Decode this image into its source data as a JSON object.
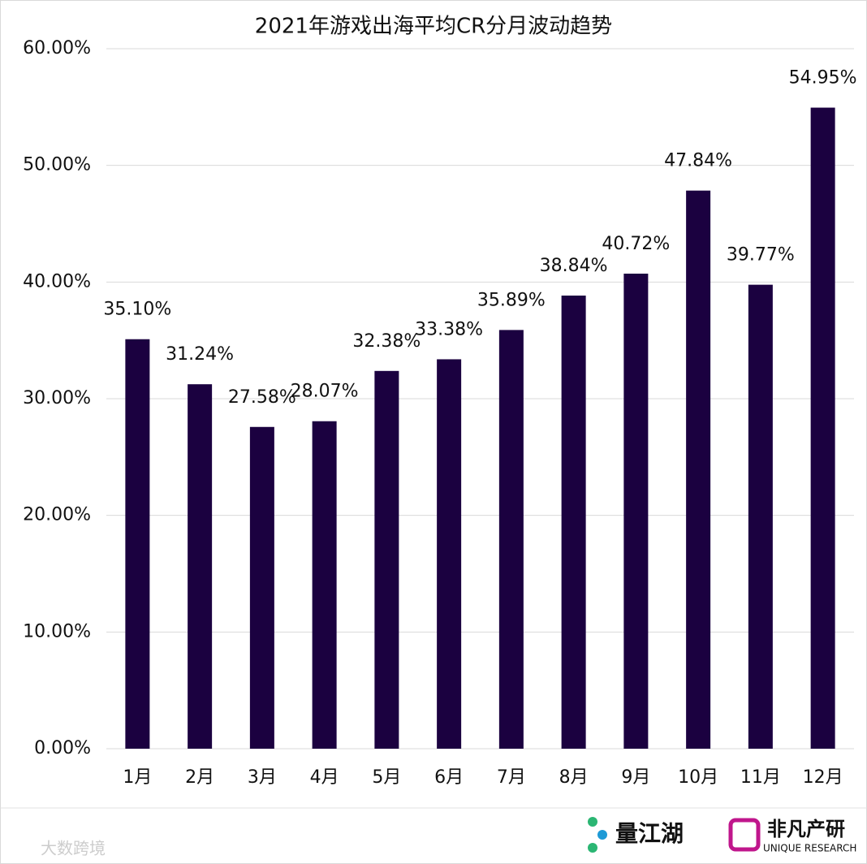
{
  "chart_data": {
    "type": "bar",
    "title": "2021年游戏出海平均CR分月波动趋势",
    "categories": [
      "1月",
      "2月",
      "3月",
      "4月",
      "5月",
      "6月",
      "7月",
      "8月",
      "9月",
      "10月",
      "11月",
      "12月"
    ],
    "values": [
      35.1,
      31.24,
      27.58,
      28.07,
      32.38,
      33.38,
      35.89,
      38.84,
      40.72,
      47.84,
      39.77,
      54.95
    ],
    "value_labels": [
      "35.10%",
      "31.24%",
      "27.58%",
      "28.07%",
      "32.38%",
      "33.38%",
      "35.89%",
      "38.84%",
      "40.72%",
      "47.84%",
      "39.77%",
      "54.95%"
    ],
    "color": "#1b0140",
    "ylim": [
      0,
      60
    ],
    "yticks": [
      {
        "value": 0,
        "label": "0.00%"
      },
      {
        "value": 10,
        "label": "10.00%"
      },
      {
        "value": 20,
        "label": "20.00%"
      },
      {
        "value": 30,
        "label": "30.00%"
      },
      {
        "value": 40,
        "label": "40.00%"
      },
      {
        "value": 50,
        "label": "50.00%"
      },
      {
        "value": 60,
        "label": "60.00%"
      }
    ],
    "grid": true
  },
  "branding": {
    "logo_left": "量江湖",
    "logo_right": "非凡产研",
    "logo_right_sub": "UNIQUE RESEARCH",
    "watermark": "大数跨境"
  }
}
